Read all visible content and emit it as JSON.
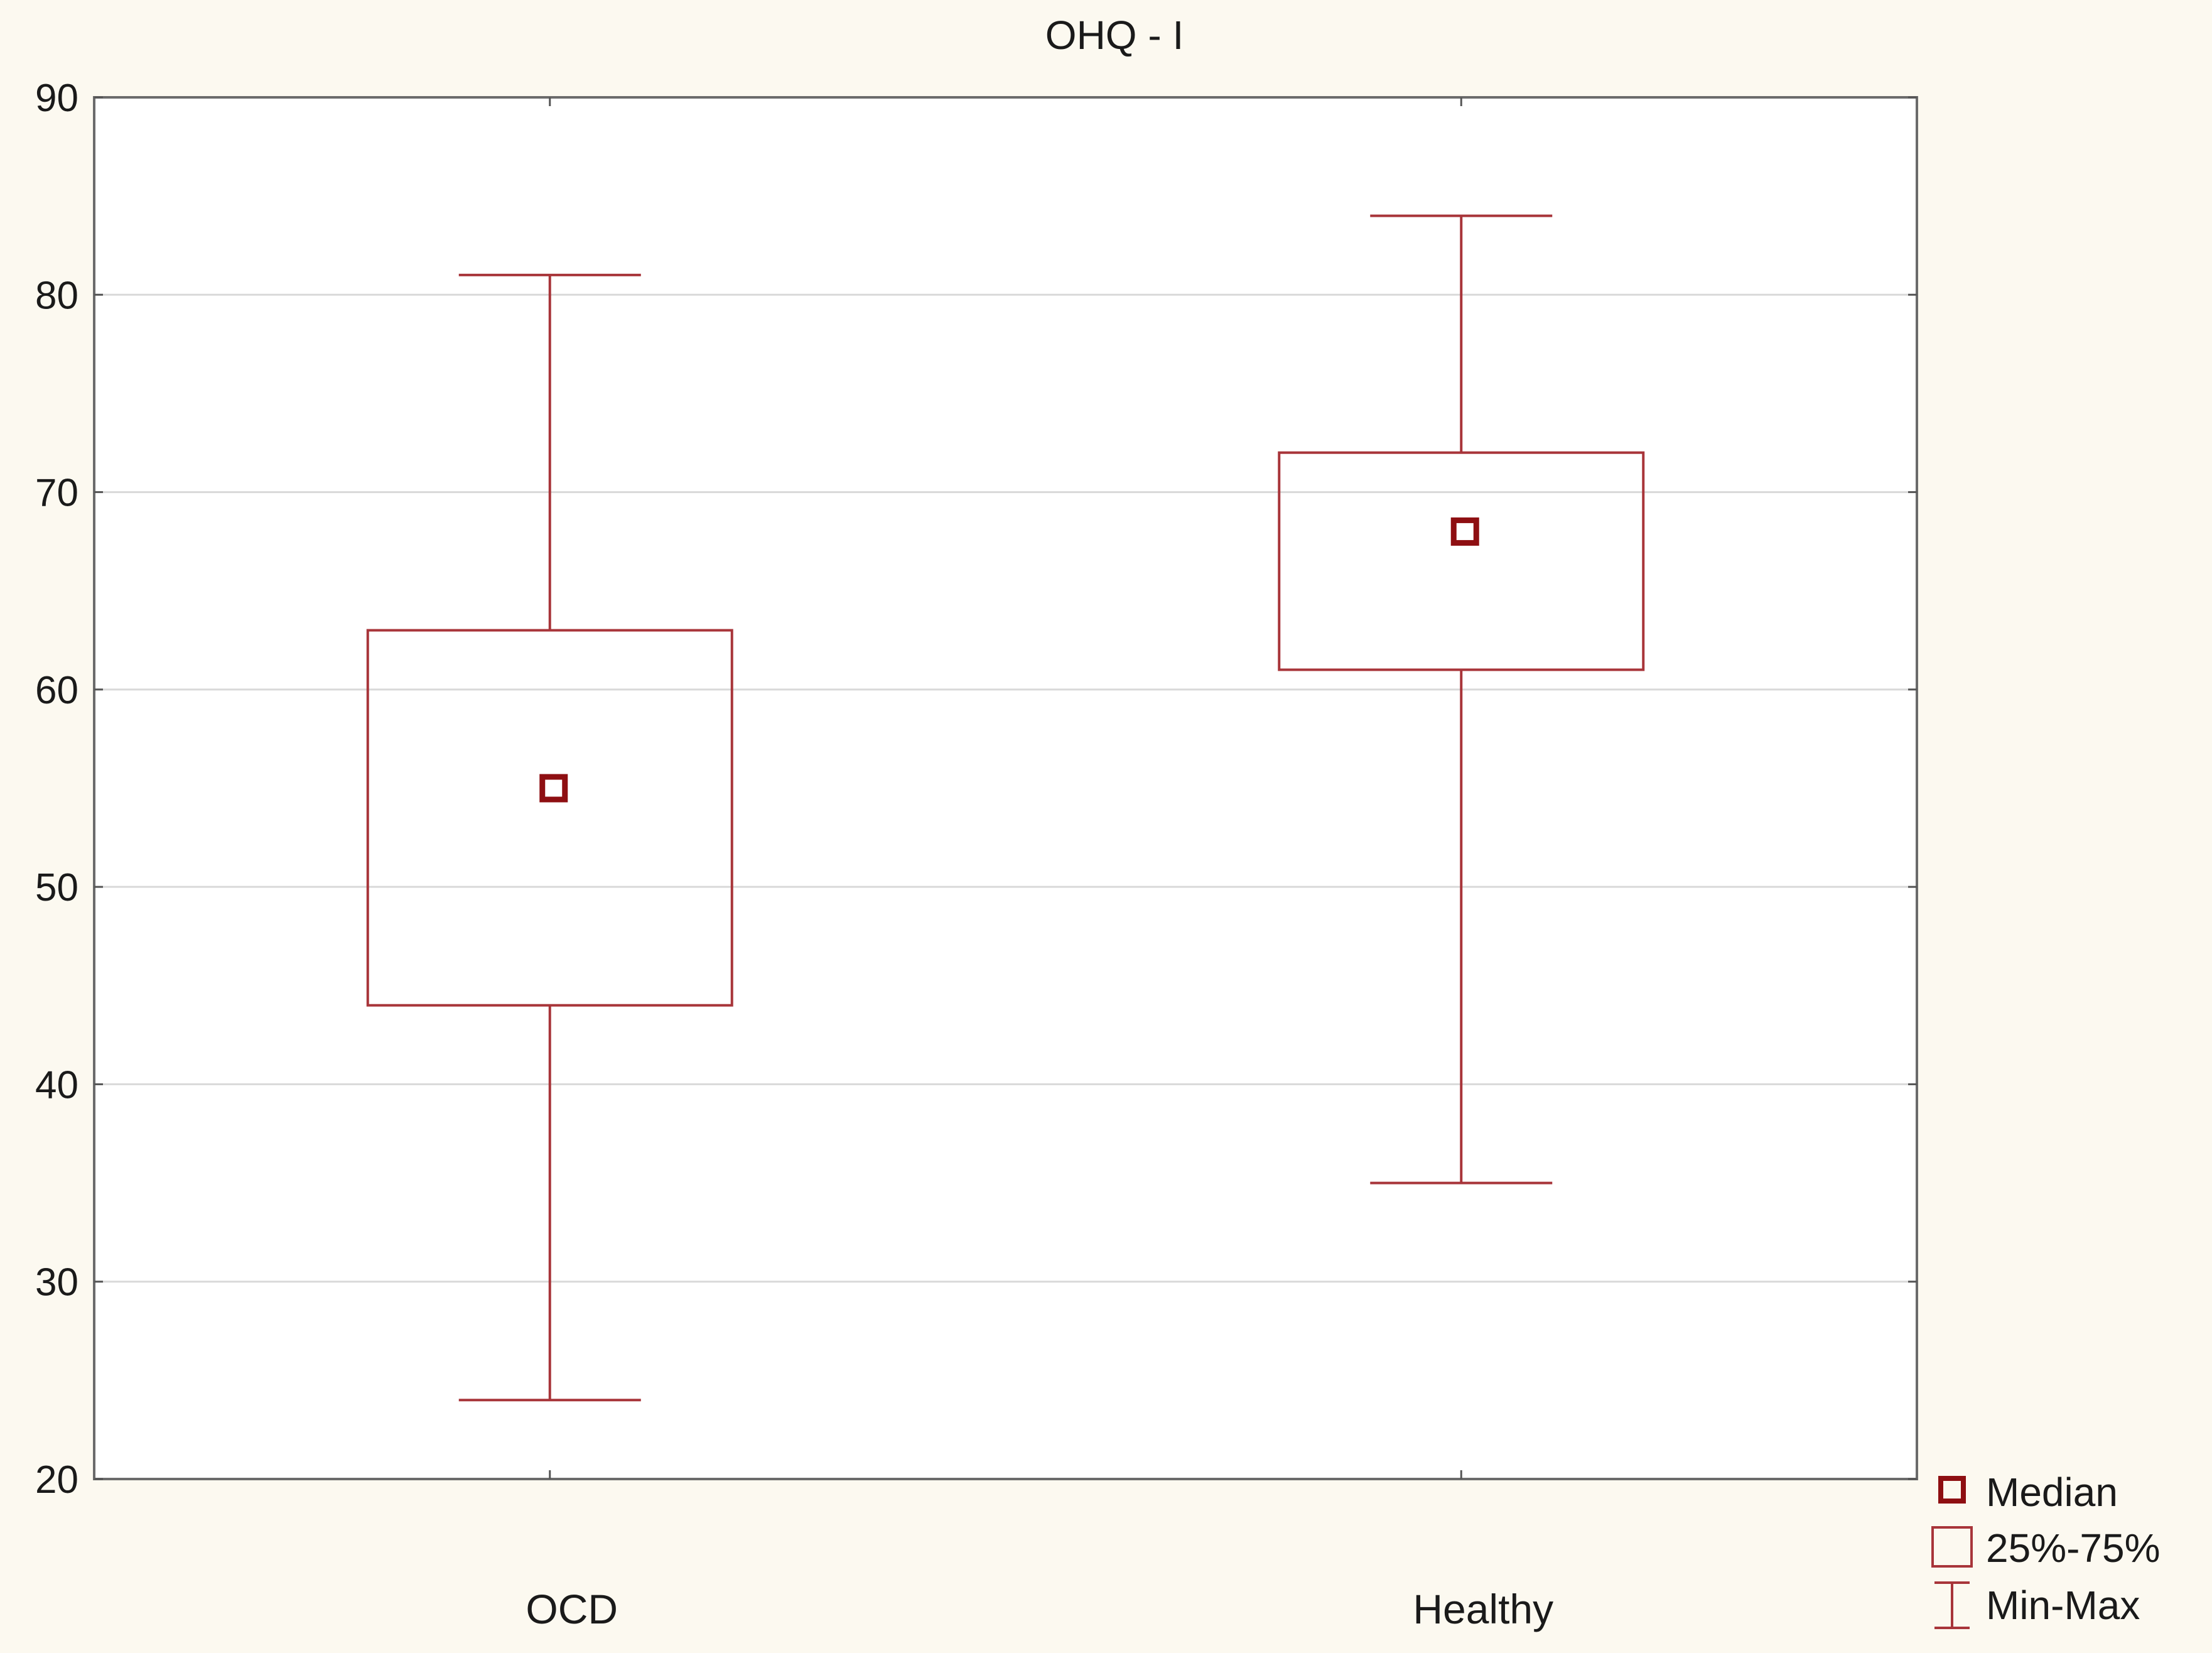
{
  "chart_data": {
    "type": "box",
    "title": "OHQ - I",
    "xlabel": "",
    "ylabel": "",
    "ylim": [
      20,
      90
    ],
    "yticks": [
      20,
      30,
      40,
      50,
      60,
      70,
      80,
      90
    ],
    "grid": true,
    "categories": [
      "OCD",
      "Healthy"
    ],
    "boxes": [
      {
        "category": "OCD",
        "min": 24,
        "q1": 44,
        "median": 55,
        "q3": 63,
        "max": 81
      },
      {
        "category": "Healthy",
        "min": 35,
        "q1": 61,
        "median": 68,
        "q3": 72,
        "max": 84
      }
    ],
    "legend": {
      "position": "bottom-right",
      "items": [
        {
          "key": "median",
          "label": "Median"
        },
        {
          "key": "iqr",
          "label": "25%-75%"
        },
        {
          "key": "range",
          "label": "Min-Max"
        }
      ]
    },
    "colors": {
      "series": "#a8353a",
      "median_marker": "#8e0f12",
      "plot_bg": "#ffffff",
      "page_bg": "#fcf9f0",
      "grid": "#d9d9d9"
    }
  }
}
